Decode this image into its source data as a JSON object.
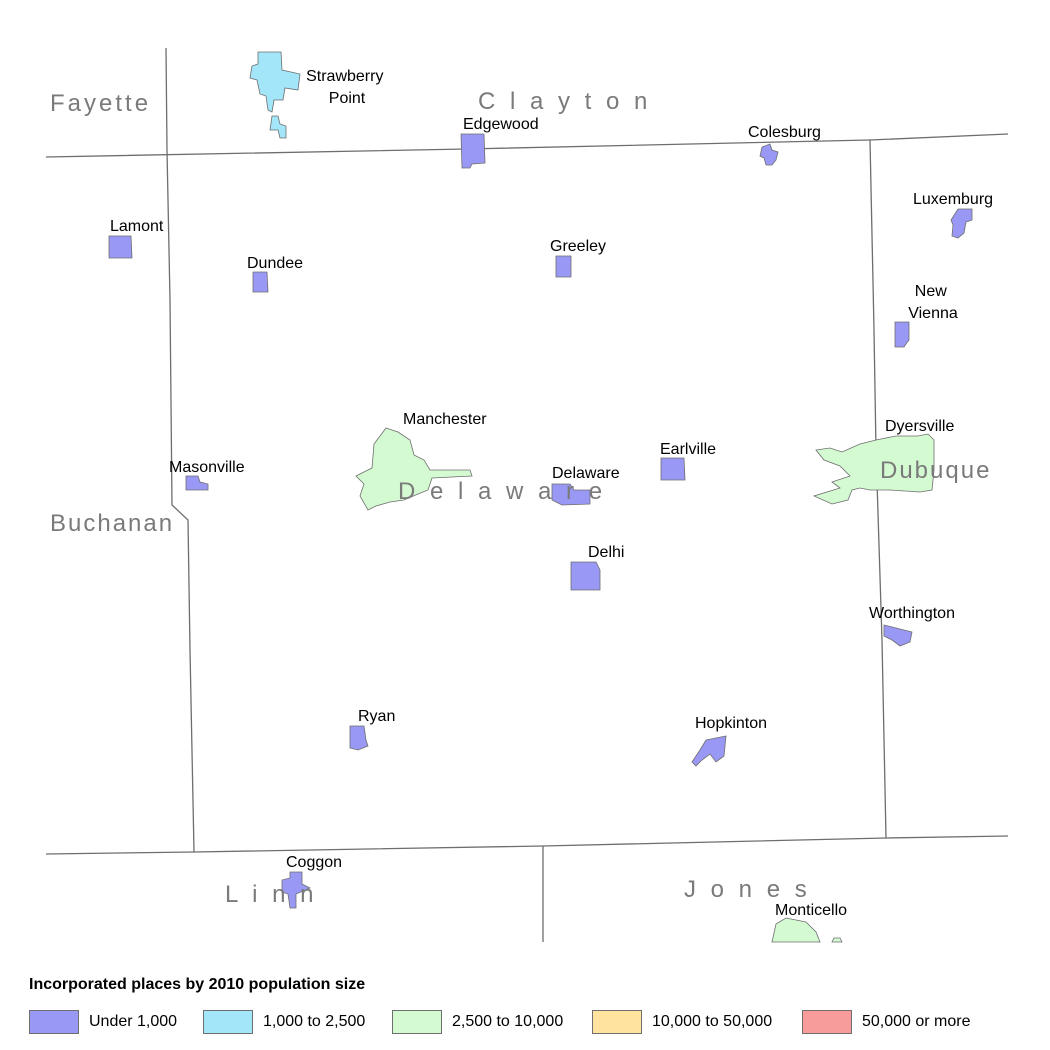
{
  "counties": [
    {
      "id": "fayette",
      "name": "Fayette"
    },
    {
      "id": "clayton",
      "name": "C l a y t o n"
    },
    {
      "id": "buchanan",
      "name": "Buchanan"
    },
    {
      "id": "delaware",
      "name": "D e l a w a r e"
    },
    {
      "id": "dubuque",
      "name": "Dubuque"
    },
    {
      "id": "linn",
      "name": "L i n n"
    },
    {
      "id": "jones",
      "name": "J o n e s"
    }
  ],
  "places": [
    {
      "id": "strawberry-point",
      "lines": [
        "Strawberry",
        "Point"
      ],
      "category": "1000-2500"
    },
    {
      "id": "edgewood",
      "lines": [
        "Edgewood"
      ],
      "category": "under-1000"
    },
    {
      "id": "colesburg",
      "lines": [
        "Colesburg"
      ],
      "category": "under-1000"
    },
    {
      "id": "luxemburg",
      "lines": [
        "Luxemburg"
      ],
      "category": "under-1000"
    },
    {
      "id": "lamont",
      "lines": [
        "Lamont"
      ],
      "category": "under-1000"
    },
    {
      "id": "dundee",
      "lines": [
        "Dundee"
      ],
      "category": "under-1000"
    },
    {
      "id": "greeley",
      "lines": [
        "Greeley"
      ],
      "category": "under-1000"
    },
    {
      "id": "new-vienna",
      "lines": [
        "New",
        "Vienna"
      ],
      "category": "under-1000"
    },
    {
      "id": "manchester",
      "lines": [
        "Manchester"
      ],
      "category": "2500-10000"
    },
    {
      "id": "masonville",
      "lines": [
        "Masonville"
      ],
      "category": "under-1000"
    },
    {
      "id": "delaware",
      "lines": [
        "Delaware"
      ],
      "category": "under-1000"
    },
    {
      "id": "earlville",
      "lines": [
        "Earlville"
      ],
      "category": "under-1000"
    },
    {
      "id": "dyersville",
      "lines": [
        "Dyersville"
      ],
      "category": "2500-10000"
    },
    {
      "id": "delhi",
      "lines": [
        "Delhi"
      ],
      "category": "under-1000"
    },
    {
      "id": "worthington",
      "lines": [
        "Worthington"
      ],
      "category": "under-1000"
    },
    {
      "id": "ryan",
      "lines": [
        "Ryan"
      ],
      "category": "under-1000"
    },
    {
      "id": "hopkinton",
      "lines": [
        "Hopkinton"
      ],
      "category": "under-1000"
    },
    {
      "id": "coggon",
      "lines": [
        "Coggon"
      ],
      "category": "under-1000"
    },
    {
      "id": "monticello",
      "lines": [
        "Monticello"
      ],
      "category": "2500-10000"
    }
  ],
  "legend": {
    "title": "Incorporated places by 2010 population size",
    "items": [
      {
        "id": "under-1000",
        "label": "Under 1,000",
        "color": "#9999f5"
      },
      {
        "id": "1000-2500",
        "label": "1,000 to 2,500",
        "color": "#a3e6fa"
      },
      {
        "id": "2500-10000",
        "label": "2,500 to 10,000",
        "color": "#d4fad2"
      },
      {
        "id": "10000-50000",
        "label": "10,000 to 50,000",
        "color": "#ffe39e"
      },
      {
        "id": "50000-plus",
        "label": "50,000 or more",
        "color": "#f79b9b"
      }
    ]
  },
  "colors": {
    "boundary": "#6e6e6e",
    "county_label": "#7a7a7a"
  }
}
